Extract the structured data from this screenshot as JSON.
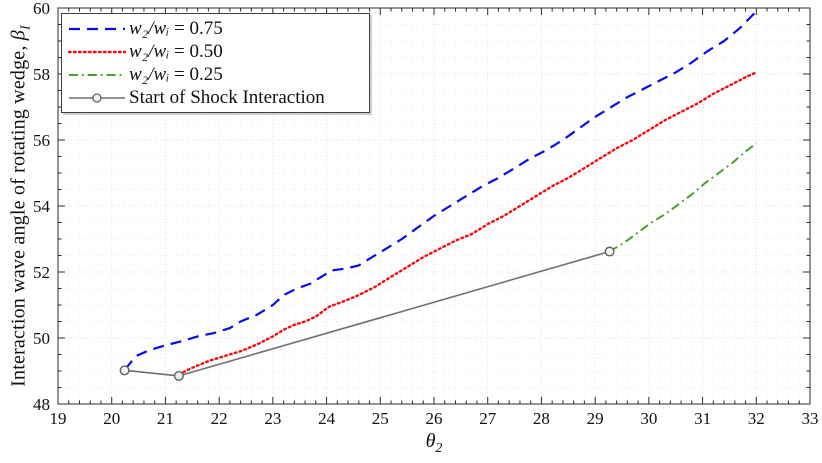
{
  "figure": {
    "background": "#ffffff",
    "axis_color": "#2b2b2b",
    "tick_label_color": "#111111",
    "grid_minor_color": "#eeeeee",
    "grid_major_color": "#e0e0e0",
    "legend_border_color": "#3f3f3f",
    "marker_fill": "#f0f0f0",
    "marker_stroke": "#5f5f5f"
  },
  "chart_data": {
    "type": "line",
    "title": "",
    "xlabel": {
      "symbol": "θ",
      "sub": "2"
    },
    "ylabel": {
      "text": "Interaction wave angle of rotating wedge, ",
      "symbol": "β",
      "sub": "I"
    },
    "xlim": [
      19,
      33
    ],
    "ylim": [
      48,
      60
    ],
    "x_ticks": [
      19,
      20,
      21,
      22,
      23,
      24,
      25,
      26,
      27,
      28,
      29,
      30,
      31,
      32,
      33
    ],
    "y_ticks": [
      48,
      50,
      52,
      54,
      56,
      58,
      60
    ],
    "x_minor_step": 0.2,
    "y_minor_step": 0.5,
    "grid": "on",
    "minor_grid": "on",
    "legend_position": "top-left",
    "series": [
      {
        "name": "w₂/wᵢ = 0.75",
        "color": "#0a0aef",
        "style": "dashed",
        "x": [
          20.25,
          20.45,
          20.7,
          21.0,
          21.3,
          21.6,
          21.9,
          22.2,
          22.4,
          22.7,
          23.0,
          23.2,
          23.45,
          23.7,
          23.9,
          24.1,
          24.35,
          24.6,
          24.85,
          25.1,
          25.4,
          25.7,
          26.0,
          26.3,
          26.6,
          26.9,
          27.2,
          27.5,
          27.8,
          28.1,
          28.4,
          28.7,
          29.0,
          29.3,
          29.6,
          29.9,
          30.2,
          30.5,
          30.8,
          31.1,
          31.4,
          31.7,
          32.0
        ],
        "y": [
          49.05,
          49.45,
          49.63,
          49.78,
          49.9,
          50.05,
          50.15,
          50.3,
          50.5,
          50.7,
          51.0,
          51.3,
          51.5,
          51.65,
          51.85,
          52.05,
          52.1,
          52.2,
          52.45,
          52.7,
          53.0,
          53.35,
          53.7,
          54.0,
          54.3,
          54.6,
          54.85,
          55.15,
          55.45,
          55.7,
          56.0,
          56.35,
          56.7,
          57.0,
          57.3,
          57.55,
          57.8,
          58.05,
          58.35,
          58.7,
          59.0,
          59.4,
          59.9
        ]
      },
      {
        "name": "w₂/wᵢ = 0.50",
        "color": "#fb0707",
        "style": "dotted",
        "x": [
          21.25,
          21.5,
          21.8,
          22.1,
          22.4,
          22.7,
          23.0,
          23.2,
          23.4,
          23.6,
          23.8,
          24.05,
          24.3,
          24.6,
          24.9,
          25.2,
          25.5,
          25.8,
          26.1,
          26.4,
          26.7,
          27.0,
          27.3,
          27.6,
          27.9,
          28.2,
          28.5,
          28.8,
          29.1,
          29.4,
          29.7,
          30.0,
          30.3,
          30.6,
          30.9,
          31.2,
          31.5,
          31.8,
          32.0
        ],
        "y": [
          48.9,
          49.1,
          49.3,
          49.45,
          49.6,
          49.8,
          50.05,
          50.25,
          50.4,
          50.5,
          50.65,
          50.95,
          51.1,
          51.3,
          51.55,
          51.85,
          52.15,
          52.45,
          52.7,
          52.95,
          53.15,
          53.45,
          53.7,
          54.0,
          54.3,
          54.6,
          54.85,
          55.15,
          55.45,
          55.75,
          56.0,
          56.3,
          56.6,
          56.85,
          57.1,
          57.4,
          57.65,
          57.9,
          58.05
        ]
      },
      {
        "name": "w₂/wᵢ = 0.25",
        "color": "#47a023",
        "style": "dashdot",
        "x": [
          29.27,
          29.55,
          29.8,
          30.05,
          30.3,
          30.55,
          30.8,
          31.05,
          31.3,
          31.55,
          31.8,
          32.0
        ],
        "y": [
          52.62,
          52.9,
          53.2,
          53.5,
          53.75,
          54.05,
          54.35,
          54.7,
          55.0,
          55.3,
          55.65,
          55.9
        ]
      },
      {
        "name": "Start of Shock Interaction",
        "color": "#6e6e6e",
        "style": "solid",
        "marker": "circle",
        "x": [
          20.24,
          21.25,
          29.27
        ],
        "y": [
          49.02,
          48.85,
          52.62
        ]
      }
    ]
  }
}
